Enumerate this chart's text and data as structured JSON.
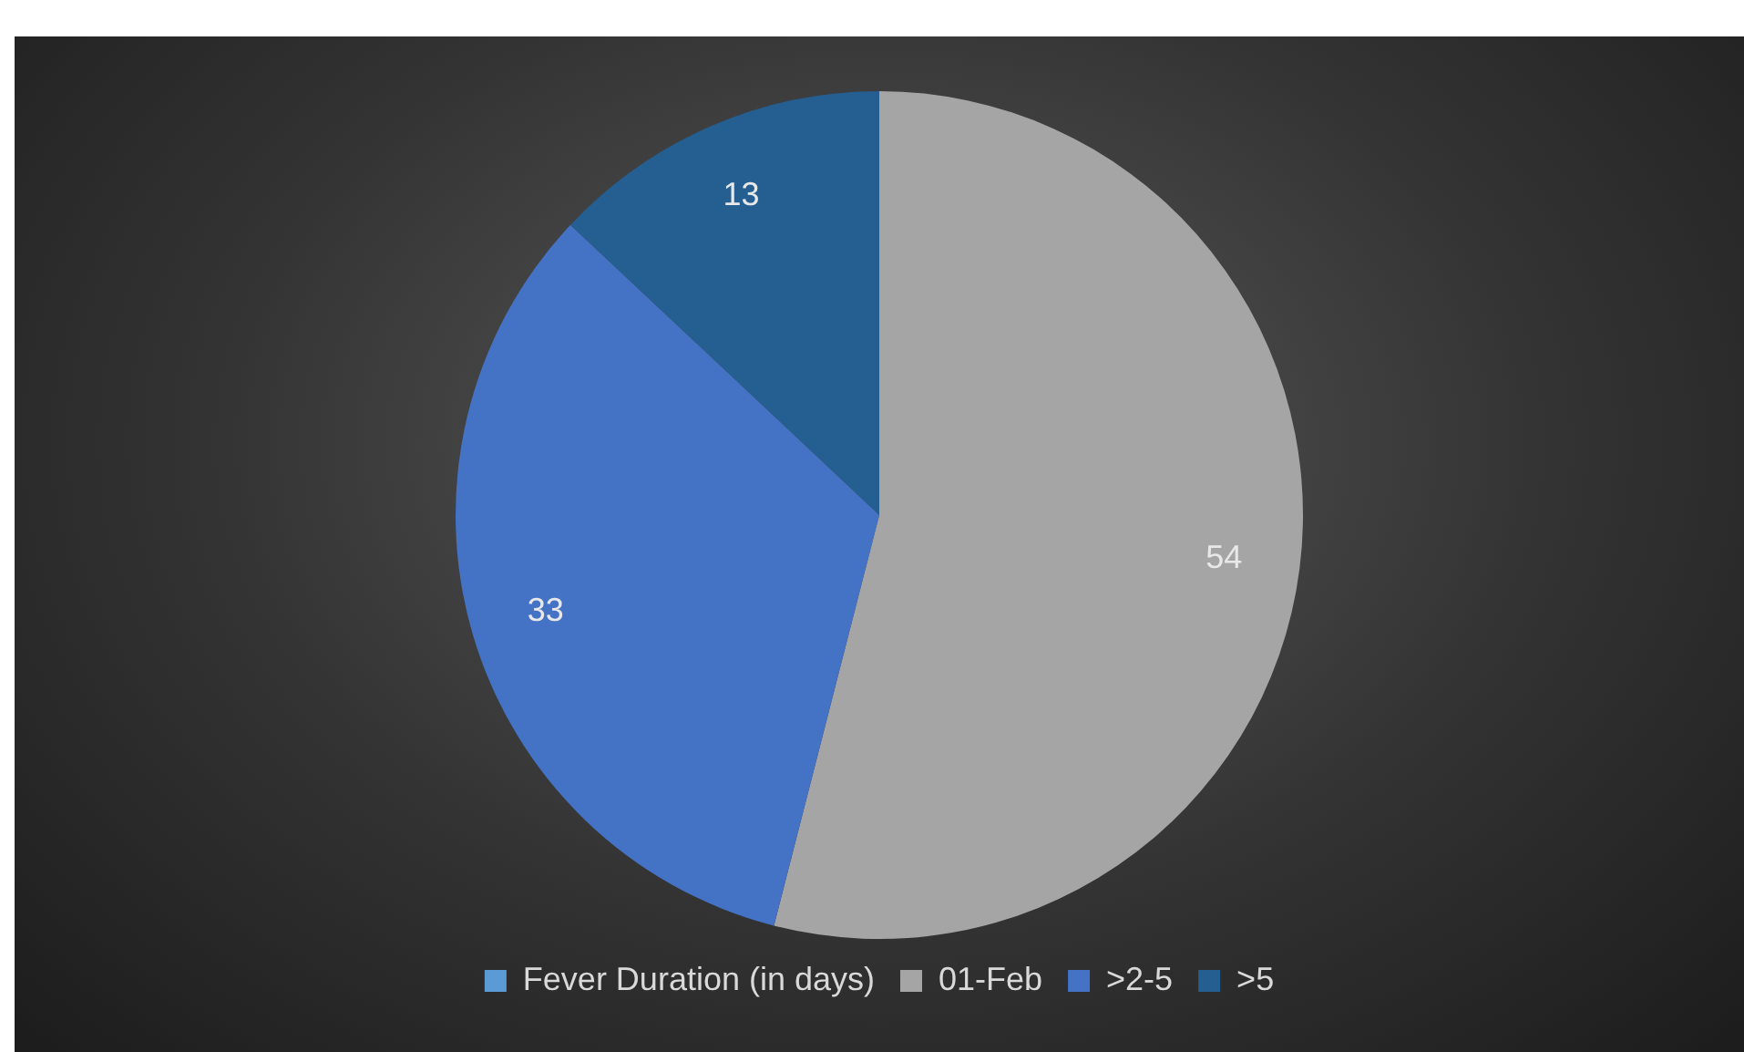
{
  "chart_data": {
    "type": "pie",
    "categories": [
      "Fever Duration (in days)",
      "01-Feb",
      ">2-5",
      ">5"
    ],
    "values": [
      null,
      54,
      33,
      13
    ],
    "colors": [
      "#5b9bd5",
      "#a5a5a5",
      "#4472c4",
      "#255e91"
    ],
    "data_labels": true,
    "legend": "bottom"
  }
}
